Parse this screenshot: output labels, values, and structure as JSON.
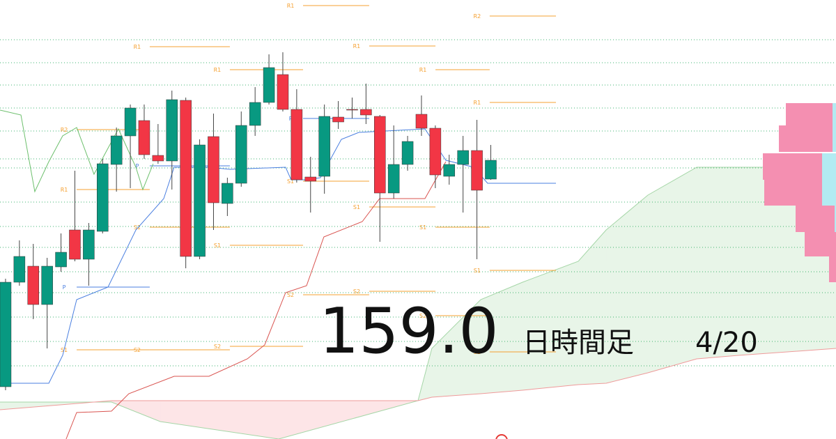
{
  "chart_data": {
    "type": "candlestick",
    "xlim": [
      -0.4,
      59.9
    ],
    "ylim": [
      156.85,
      160.0
    ],
    "colors": {
      "up": "#089981",
      "down": "#f23645"
    },
    "open": [
      157.225,
      157.975,
      158.09,
      157.815,
      158.085,
      158.35,
      158.14,
      158.34,
      158.82,
      159.025,
      159.135,
      158.885,
      158.845,
      159.28,
      158.16,
      159.02,
      158.54,
      158.685,
      159.1,
      159.265,
      159.465,
      159.215,
      158.73,
      158.735,
      159.16,
      159.215,
      159.215,
      159.165,
      158.615,
      158.82,
      159.18,
      159.08,
      158.735,
      158.82,
      158.92,
      158.715
    ],
    "high": [
      158.0,
      158.275,
      158.25,
      158.15,
      158.325,
      158.775,
      158.4,
      158.86,
      159.085,
      159.25,
      159.25,
      159.11,
      159.35,
      159.3,
      159.0,
      159.185,
      158.725,
      159.2,
      159.375,
      159.61,
      159.625,
      159.36,
      158.875,
      159.25,
      159.275,
      159.3,
      159.4,
      159.175,
      159.1,
      159.025,
      159.315,
      159.1,
      158.89,
      159.025,
      159.14,
      158.96
    ],
    "low": [
      157.2,
      157.95,
      157.71,
      157.5,
      158.05,
      158.125,
      157.95,
      158.325,
      158.625,
      158.65,
      158.86,
      158.825,
      158.64,
      158.075,
      158.14,
      158.35,
      158.45,
      158.66,
      159.025,
      159.25,
      159.2,
      158.69,
      158.475,
      158.61,
      159.075,
      159.15,
      159.11,
      158.265,
      158.575,
      158.775,
      159.025,
      158.65,
      158.675,
      158.475,
      158.14,
      158.71
    ],
    "close": [
      157.975,
      158.16,
      157.815,
      158.09,
      158.19,
      158.14,
      158.35,
      158.825,
      159.025,
      159.225,
      158.89,
      158.845,
      159.285,
      158.16,
      158.96,
      158.545,
      158.685,
      159.1,
      159.265,
      159.515,
      159.215,
      158.71,
      158.7,
      159.165,
      159.125,
      159.21,
      159.175,
      158.615,
      158.82,
      158.985,
      159.08,
      158.745,
      158.82,
      158.92,
      158.635,
      158.85
    ],
    "lines": [
      {
        "color": "#4a7fe0",
        "x": [
          -0.4,
          3.12,
          4.12,
          5.13,
          7.39,
          9.4,
          11.41,
          12.16,
          14.67,
          16.18,
          20.2,
          20.6,
          21.71,
          22.71,
          24.22,
          25.48,
          30.25,
          31.76,
          33.77,
          34.77,
          39.7
        ],
        "values": [
          157.25,
          157.25,
          157.45,
          157.85,
          157.94,
          158.35,
          158.575,
          158.8,
          158.8,
          158.785,
          158.8,
          158.71,
          158.71,
          158.725,
          159.0,
          159.05,
          159.075,
          158.85,
          158.8,
          158.685,
          158.685
        ]
      },
      {
        "color": "#d9534f",
        "x": [
          4.37,
          5.13,
          7.64,
          8.89,
          12.16,
          14.67,
          17.44,
          18.69,
          20.2,
          21.71,
          22.96,
          25.73,
          26.98,
          30.25,
          31.76
        ],
        "values": [
          156.85,
          157.04,
          157.05,
          157.175,
          157.3,
          157.3,
          157.425,
          157.525,
          157.9,
          157.95,
          158.3,
          158.41,
          158.575,
          158.575,
          158.84
        ]
      },
      {
        "color": "#6cbf6c",
        "x": [
          -0.4,
          1.11,
          2.11,
          3.12,
          4.12,
          5.13,
          6.38,
          8.14,
          9.4,
          9.9,
          10.65
        ],
        "values": [
          159.21,
          159.175,
          158.625,
          158.84,
          159.025,
          159.085,
          158.75,
          159.075,
          158.8,
          158.64,
          158.825
        ]
      }
    ],
    "cloud": {
      "x": [
        -0.4,
        7.64,
        11.16,
        19.7,
        29.75,
        30.75,
        34.27,
        37.29,
        41.31,
        43.32,
        46.33,
        49.85,
        52.86,
        59.9
      ],
      "span_a": [
        157.115,
        157.115,
        156.975,
        156.85,
        157.125,
        157.5,
        157.85,
        157.975,
        158.125,
        158.35,
        158.6,
        158.8,
        158.8,
        158.8
      ],
      "span_b": [
        157.06,
        157.125,
        157.125,
        157.125,
        157.125,
        157.15,
        157.175,
        157.2,
        157.24,
        157.25,
        157.325,
        157.425,
        157.45,
        157.5
      ],
      "color_a": "#a5d6a7",
      "color_b": "#ef9a9a"
    },
    "pivots": [
      {
        "label": "R2",
        "value": 159.07,
        "from": 5.13,
        "to": 10.4,
        "color": "#f5a030"
      },
      {
        "label": "R1",
        "value": 158.64,
        "from": 5.13,
        "to": 10.4,
        "color": "#f5a030"
      },
      {
        "label": "P",
        "value": 157.94,
        "from": 5.13,
        "to": 10.4,
        "color": "#4a7fe0"
      },
      {
        "label": "S1",
        "value": 157.49,
        "from": 5.13,
        "to": 10.4,
        "color": "#f5a030"
      },
      {
        "label": "R1",
        "value": 159.665,
        "from": 10.4,
        "to": 16.18,
        "color": "#f5a030"
      },
      {
        "label": "P",
        "value": 158.81,
        "from": 10.4,
        "to": 16.18,
        "color": "#4a7fe0"
      },
      {
        "label": "S1",
        "value": 158.37,
        "from": 10.4,
        "to": 16.18,
        "color": "#f5a030"
      },
      {
        "label": "S2",
        "value": 157.49,
        "from": 10.4,
        "to": 16.18,
        "color": "#f5a030"
      },
      {
        "label": "R1",
        "value": 159.5,
        "from": 16.18,
        "to": 21.46,
        "color": "#f5a030"
      },
      {
        "label": "S1",
        "value": 158.24,
        "from": 16.18,
        "to": 21.46,
        "color": "#f5a030"
      },
      {
        "label": "S2",
        "value": 157.515,
        "from": 16.18,
        "to": 21.46,
        "color": "#f5a030"
      },
      {
        "label": "R1",
        "value": 159.96,
        "from": 21.46,
        "to": 26.23,
        "color": "#f5a030"
      },
      {
        "label": "P",
        "value": 159.15,
        "from": 21.46,
        "to": 26.23,
        "color": "#4a7fe0"
      },
      {
        "label": "S1",
        "value": 158.7,
        "from": 21.46,
        "to": 26.23,
        "color": "#f5a030"
      },
      {
        "label": "S2",
        "value": 157.885,
        "from": 21.46,
        "to": 26.23,
        "color": "#f5a030"
      },
      {
        "label": "R1",
        "value": 159.67,
        "from": 26.23,
        "to": 31.01,
        "color": "#f5a030"
      },
      {
        "label": "S1",
        "value": 158.515,
        "from": 26.23,
        "to": 31.01,
        "color": "#f5a030"
      },
      {
        "label": "S2",
        "value": 157.91,
        "from": 26.23,
        "to": 31.01,
        "color": "#f5a030"
      },
      {
        "label": "R1",
        "value": 159.5,
        "from": 31.01,
        "to": 34.92,
        "color": "#f5a030"
      },
      {
        "label": "S1",
        "value": 158.37,
        "from": 31.01,
        "to": 34.92,
        "color": "#f5a030"
      },
      {
        "label": "S2",
        "value": 157.735,
        "from": 31.01,
        "to": 34.92,
        "color": "#f5a030"
      },
      {
        "label": "R2",
        "value": 159.885,
        "from": 34.92,
        "to": 39.7,
        "color": "#f5a030"
      },
      {
        "label": "R1",
        "value": 159.265,
        "from": 34.92,
        "to": 39.7,
        "color": "#f5a030"
      },
      {
        "label": "S1",
        "value": 158.06,
        "from": 34.92,
        "to": 39.7,
        "color": "#f5a030"
      },
      {
        "label": "S2",
        "value": 157.475,
        "from": 34.92,
        "to": 39.7,
        "color": "#f5a030"
      }
    ],
    "volume_profile": {
      "low": [
        159.1,
        158.91,
        158.71,
        158.525,
        158.335,
        158.16,
        157.975
      ],
      "high": [
        159.26,
        159.1,
        158.9,
        158.71,
        158.525,
        158.335,
        158.16
      ],
      "sell": [
        67,
        77,
        85,
        83,
        56,
        45,
        10
      ],
      "buy": [
        5,
        5,
        20,
        20,
        2,
        0,
        0
      ],
      "colors": [
        "#f48fb1",
        "#b2ebf2"
      ]
    }
  },
  "overlay": {
    "price": "159.0",
    "timeframe": "日時間足",
    "date": "4/20"
  }
}
